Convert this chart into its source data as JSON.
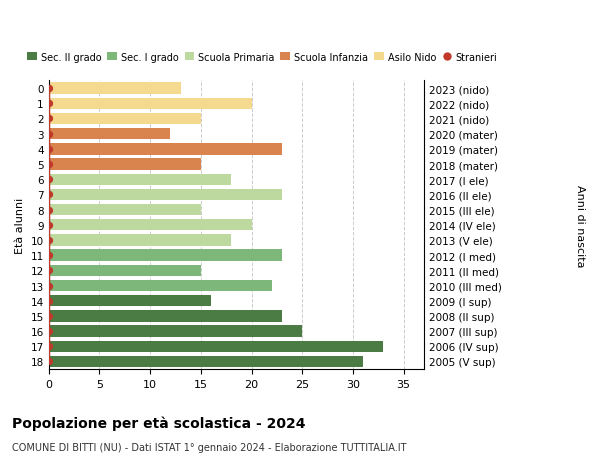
{
  "ages": [
    0,
    1,
    2,
    3,
    4,
    5,
    6,
    7,
    8,
    9,
    10,
    11,
    12,
    13,
    14,
    15,
    16,
    17,
    18
  ],
  "right_labels": [
    "2023 (nido)",
    "2022 (nido)",
    "2021 (nido)",
    "2020 (mater)",
    "2019 (mater)",
    "2018 (mater)",
    "2017 (I ele)",
    "2016 (II ele)",
    "2015 (III ele)",
    "2014 (IV ele)",
    "2013 (V ele)",
    "2012 (I med)",
    "2011 (II med)",
    "2010 (III med)",
    "2009 (I sup)",
    "2008 (II sup)",
    "2007 (III sup)",
    "2006 (IV sup)",
    "2005 (V sup)"
  ],
  "bar_values": [
    13,
    20,
    15,
    12,
    23,
    15,
    18,
    23,
    15,
    20,
    18,
    23,
    15,
    22,
    16,
    23,
    25,
    33,
    31
  ],
  "bar_colors": [
    "#f5d98e",
    "#f5d98e",
    "#f5d98e",
    "#d9844e",
    "#d9844e",
    "#d9844e",
    "#bdd9a0",
    "#bdd9a0",
    "#bdd9a0",
    "#bdd9a0",
    "#bdd9a0",
    "#7db87a",
    "#7db87a",
    "#7db87a",
    "#4a7c44",
    "#4a7c44",
    "#4a7c44",
    "#4a7c44",
    "#4a7c44"
  ],
  "stranieri_all": true,
  "legend_labels": [
    "Sec. II grado",
    "Sec. I grado",
    "Scuola Primaria",
    "Scuola Infanzia",
    "Asilo Nido",
    "Stranieri"
  ],
  "legend_colors": [
    "#4a7c44",
    "#7db87a",
    "#bdd9a0",
    "#d9844e",
    "#f5d98e",
    "#c0392b"
  ],
  "title": "Popolazione per età scolastica - 2024",
  "subtitle": "COMUNE DI BITTI (NU) - Dati ISTAT 1° gennaio 2024 - Elaborazione TUTTITALIA.IT",
  "ylabel_left": "Età alunni",
  "ylabel_right": "Anni di nascita",
  "xlim": [
    0,
    37
  ],
  "xticks": [
    0,
    5,
    10,
    15,
    20,
    25,
    30,
    35
  ],
  "background_color": "#ffffff",
  "grid_color": "#cccccc",
  "bar_height": 0.75,
  "stranieri_color": "#c0392b"
}
